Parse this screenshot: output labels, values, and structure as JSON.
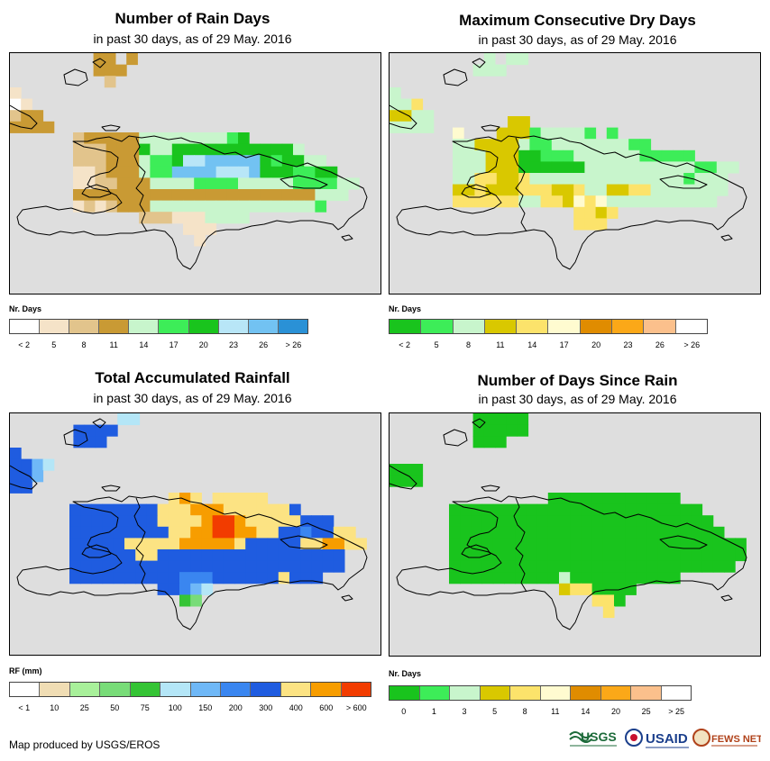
{
  "panels": [
    {
      "title": "Number of Rain Days",
      "subtitle": "in past 30 days, as of 29 May. 2016",
      "legend_title": "Nr. Days",
      "legend_labels": [
        "< 2",
        "5",
        "8",
        "11",
        "14",
        "17",
        "20",
        "23",
        "26",
        "> 26"
      ],
      "legend_colors": [
        "#ffffff",
        "#f5e3c8",
        "#e2c48c",
        "#c99a34",
        "#c8f5cc",
        "#3ded58",
        "#19c41d",
        "#b8e6f7",
        "#72c2f2",
        "#2a91d6"
      ]
    },
    {
      "title": "Maximum Consecutive Dry Days",
      "subtitle": "in past 30 days, as of 29 May. 2016",
      "legend_title": "Nr. Days",
      "legend_labels": [
        "< 2",
        "5",
        "8",
        "11",
        "14",
        "17",
        "20",
        "23",
        "26",
        "> 26"
      ],
      "legend_colors": [
        "#19c41d",
        "#3ded58",
        "#c8f5cc",
        "#d9c800",
        "#fce36b",
        "#fffbd0",
        "#e08c00",
        "#fba818",
        "#fbc08c",
        "#ffffff"
      ]
    },
    {
      "title": "Total Accumulated Rainfall",
      "subtitle": "in past 30 days, as of 29 May. 2016",
      "legend_title": "RF (mm)",
      "legend_labels": [
        "< 1",
        "10",
        "25",
        "50",
        "75",
        "100",
        "150",
        "200",
        "300",
        "400",
        "600",
        "> 600"
      ],
      "legend_colors": [
        "#ffffff",
        "#f0ddb4",
        "#a8f09a",
        "#78dc78",
        "#35c435",
        "#b4e6f7",
        "#6fb8f7",
        "#3a86f0",
        "#1f5ce0",
        "#fce383",
        "#f79d00",
        "#f23c00"
      ]
    },
    {
      "title": "Number of Days Since Rain",
      "subtitle": "in past 30 days, as of 29 May. 2016",
      "legend_title": "Nr. Days",
      "legend_labels": [
        "0",
        "1",
        "3",
        "5",
        "8",
        "11",
        "14",
        "20",
        "25",
        "> 25"
      ],
      "legend_colors": [
        "#19c41d",
        "#3ded58",
        "#c8f5cc",
        "#d9c800",
        "#fce36b",
        "#fffbd0",
        "#e08c00",
        "#fba818",
        "#fbc08c",
        "#ffffff"
      ]
    }
  ],
  "credit": "Map produced by USGS/EROS",
  "logos": {
    "usgs": "USGS",
    "usaid": "USAID",
    "fewsnet": "FEWS NET"
  }
}
